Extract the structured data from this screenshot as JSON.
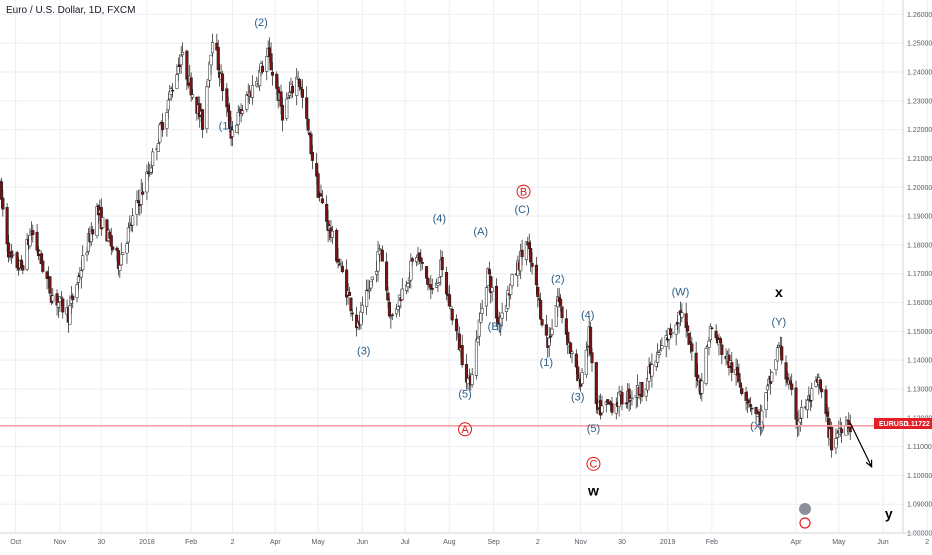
{
  "header": {
    "title": "Euro / U.S. Dollar, 1D, FXCM"
  },
  "chart_data": {
    "type": "candlestick",
    "symbol": "EURUSD",
    "title": "Euro / U.S. Dollar, 1D, FXCM",
    "ylim": [
      1.08,
      1.265
    ],
    "xlim": [
      "2017-09-20",
      "2019-06-15"
    ],
    "y_ticks": [
      "1.26000",
      "1.25000",
      "1.24000",
      "1.23000",
      "1.22000",
      "1.21000",
      "1.20000",
      "1.19000",
      "1.18000",
      "1.17000",
      "1.16000",
      "1.15000",
      "1.14000",
      "1.13000",
      "1.12000",
      "1.11000",
      "1.10000",
      "1.09000",
      "1.08000"
    ],
    "x_ticks": [
      {
        "date": "2017-10-01",
        "label": "Oct"
      },
      {
        "date": "2017-11-01",
        "label": "Nov"
      },
      {
        "date": "2017-11-30",
        "label": "30"
      },
      {
        "date": "2018-01-01",
        "label": "2018"
      },
      {
        "date": "2018-02-01",
        "label": "Feb"
      },
      {
        "date": "2018-03-02",
        "label": "2"
      },
      {
        "date": "2018-04-01",
        "label": "Apr"
      },
      {
        "date": "2018-05-01",
        "label": "May"
      },
      {
        "date": "2018-06-01",
        "label": "Jun"
      },
      {
        "date": "2018-07-01",
        "label": "Jul"
      },
      {
        "date": "2018-08-01",
        "label": "Aug"
      },
      {
        "date": "2018-09-01",
        "label": "Sep"
      },
      {
        "date": "2018-10-02",
        "label": "2"
      },
      {
        "date": "2018-11-01",
        "label": "Nov"
      },
      {
        "date": "2018-11-30",
        "label": "30"
      },
      {
        "date": "2019-01-01",
        "label": "2019"
      },
      {
        "date": "2019-02-01",
        "label": "Feb"
      },
      {
        "date": "2019-04-01",
        "label": "Apr"
      },
      {
        "date": "2019-05-01",
        "label": "May"
      },
      {
        "date": "2019-06-01",
        "label": "Jun"
      },
      {
        "date": "2019-07-02",
        "label": "2"
      }
    ],
    "price_path": [
      [
        "2017-09-20",
        1.199
      ],
      [
        "2017-09-27",
        1.175
      ],
      [
        "2017-10-05",
        1.172
      ],
      [
        "2017-10-12",
        1.185
      ],
      [
        "2017-10-26",
        1.163
      ],
      [
        "2017-11-07",
        1.156
      ],
      [
        "2017-11-27",
        1.192
      ],
      [
        "2017-12-12",
        1.174
      ],
      [
        "2018-01-02",
        1.205
      ],
      [
        "2018-01-25",
        1.246
      ],
      [
        "2018-02-09",
        1.222
      ],
      [
        "2018-02-16",
        1.253
      ],
      [
        "2018-03-01",
        1.219
      ],
      [
        "2018-03-27",
        1.246
      ],
      [
        "2018-04-06",
        1.226
      ],
      [
        "2018-04-17",
        1.239
      ],
      [
        "2018-05-01",
        1.199
      ],
      [
        "2018-05-29",
        1.151
      ],
      [
        "2018-06-14",
        1.179
      ],
      [
        "2018-06-21",
        1.154
      ],
      [
        "2018-07-09",
        1.177
      ],
      [
        "2018-07-20",
        1.163
      ],
      [
        "2018-07-26",
        1.172
      ],
      [
        "2018-08-15",
        1.131
      ],
      [
        "2018-08-28",
        1.171
      ],
      [
        "2018-09-04",
        1.153
      ],
      [
        "2018-09-24",
        1.181
      ],
      [
        "2018-10-09",
        1.145
      ],
      [
        "2018-10-16",
        1.162
      ],
      [
        "2018-10-31",
        1.131
      ],
      [
        "2018-11-07",
        1.149
      ],
      [
        "2018-11-12",
        1.122
      ],
      [
        "2018-12-14",
        1.13
      ],
      [
        "2019-01-10",
        1.157
      ],
      [
        "2019-01-24",
        1.131
      ],
      [
        "2019-01-31",
        1.151
      ],
      [
        "2019-03-07",
        1.119
      ],
      [
        "2019-03-20",
        1.145
      ],
      [
        "2019-04-02",
        1.119
      ],
      [
        "2019-04-17",
        1.132
      ],
      [
        "2019-04-26",
        1.111
      ],
      [
        "2019-05-06",
        1.12
      ],
      [
        "2019-05-09",
        1.1172
      ]
    ],
    "current_price": {
      "value": 1.11722,
      "label": "EURUSD",
      "value_text": "1.11722"
    },
    "wave_labels": [
      {
        "text": "(1)",
        "date": "2018-02-25",
        "price": 1.22
      },
      {
        "text": "(2)",
        "date": "2018-03-22",
        "price": 1.256
      },
      {
        "text": "(3)",
        "date": "2018-06-02",
        "price": 1.142
      },
      {
        "text": "(4)",
        "date": "2018-07-25",
        "price": 1.188
      },
      {
        "text": "(5)",
        "date": "2018-08-12",
        "price": 1.127
      },
      {
        "text": "(A)",
        "date": "2018-08-23",
        "price": 1.1835
      },
      {
        "text": "(B)",
        "date": "2018-09-02",
        "price": 1.1505
      },
      {
        "text": "(C)",
        "date": "2018-09-21",
        "price": 1.191
      },
      {
        "text": "(2)",
        "date": "2018-10-16",
        "price": 1.167
      },
      {
        "text": "(1)",
        "date": "2018-10-08",
        "price": 1.138
      },
      {
        "text": "(4)",
        "date": "2018-11-06",
        "price": 1.1545
      },
      {
        "text": "(3)",
        "date": "2018-10-30",
        "price": 1.126
      },
      {
        "text": "(5)",
        "date": "2018-11-10",
        "price": 1.115
      },
      {
        "text": "(W)",
        "date": "2019-01-10",
        "price": 1.1625
      },
      {
        "text": "(X)",
        "date": "2019-03-05",
        "price": 1.116
      },
      {
        "text": "(Y)",
        "date": "2019-03-20",
        "price": 1.152
      }
    ],
    "big_labels": [
      {
        "text": "x",
        "date": "2019-03-20",
        "price": 1.162
      },
      {
        "text": "w",
        "date": "2018-11-10",
        "price": 1.093
      },
      {
        "text": "y",
        "date": "2019-06-05",
        "price": 1.085
      }
    ],
    "circle_labels": [
      {
        "text": "B",
        "date": "2018-09-22",
        "price": 1.1985
      },
      {
        "text": "A",
        "date": "2018-08-12",
        "price": 1.116
      },
      {
        "text": "C",
        "date": "2018-11-10",
        "price": 1.104
      }
    ],
    "projection": {
      "from": {
        "date": "2019-05-09",
        "price": 1.1182
      },
      "to": {
        "date": "2019-05-24",
        "price": 1.103
      }
    },
    "colors": {
      "up": "#ffffff",
      "down": "#7a1414",
      "wick": "#1a1a1a",
      "wave_label": "#2b5c86",
      "circle_label": "#d81b1b",
      "price_line": "#f4a3a3",
      "price_tag": "#e21f26",
      "grid": "#eceef2"
    }
  }
}
